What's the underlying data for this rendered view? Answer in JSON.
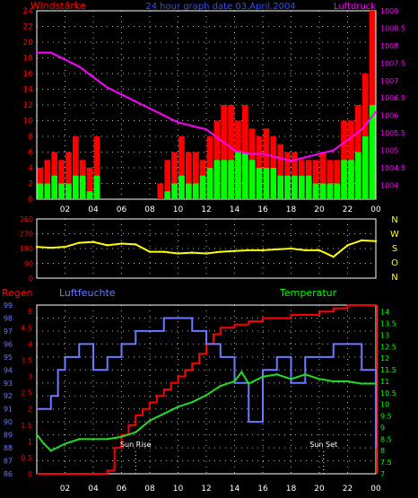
{
  "header": {
    "left_label": "Windstärke",
    "title": "24 hour graph date  03.April.2004",
    "right_label": "Luftdruck"
  },
  "bottom_header": {
    "regen": "Regen",
    "luftfeuchte": "Luftfeuchte",
    "temperatur": "Temperatur"
  },
  "hour_ticks": [
    "02",
    "04",
    "06",
    "08",
    "10",
    "12",
    "14",
    "16",
    "18",
    "20",
    "22",
    "00"
  ],
  "colors": {
    "background": "#000000",
    "wind_gust": "#ff0000",
    "wind_avg": "#00ff00",
    "pressure": "#ff00ff",
    "direction": "#ffff00",
    "rain": "#ff0000",
    "humidity": "#6a7bff",
    "temperature": "#22dd22",
    "grid": "#ffffff",
    "left_axis": "#ff0000",
    "right_axis_pressure": "#ff00ff",
    "right_axis_dir": "#ffff00",
    "humidity_axis": "#6a7bff",
    "temp_axis": "#ff2200"
  },
  "chart_data": [
    {
      "type": "bar",
      "title": "24 hour graph date  03.April.2004",
      "x_label": "",
      "x_ticks": [
        "02",
        "04",
        "06",
        "08",
        "10",
        "12",
        "14",
        "16",
        "18",
        "20",
        "22",
        "00"
      ],
      "y_left": {
        "label": "Windstärke",
        "ticks": [
          "0",
          "2",
          "4",
          "6",
          "8",
          "10",
          "12",
          "14",
          "16",
          "18",
          "20",
          "22",
          "24"
        ],
        "ylim": [
          0,
          24
        ]
      },
      "y_right": {
        "label": "Luftdruck",
        "ticks": [
          "1004",
          "1004.5",
          "1005",
          "1005.5",
          "1006",
          "1006.5",
          "1007",
          "1007.5",
          "1008",
          "1008.5",
          "1009"
        ],
        "ylim": [
          1003.6,
          1009
        ]
      },
      "series": [
        {
          "name": "Windstärke",
          "x_hours": [
            0.5,
            1,
            1.5,
            2,
            2.5,
            3,
            3.5,
            4,
            4.5,
            5,
            5.5,
            6,
            6.5,
            7,
            7.5,
            8,
            8.5,
            9,
            9.5,
            10,
            10.5,
            11,
            11.5,
            12,
            12.5,
            13,
            13.5,
            14,
            14.5,
            15,
            15.5,
            16,
            16.5,
            17,
            17.5,
            18,
            18.5,
            19,
            19.5,
            20,
            20.5,
            21,
            21.5,
            22,
            22.5,
            23,
            23.5,
            24
          ],
          "gust": [
            4,
            5,
            6,
            5,
            6,
            8,
            5,
            4,
            8,
            0,
            0,
            0,
            0,
            0,
            0,
            0,
            0,
            2,
            5,
            6,
            8,
            6,
            6,
            5,
            8,
            10,
            12,
            12,
            10,
            12,
            9,
            8,
            9,
            8,
            7,
            6,
            6,
            5,
            5,
            5,
            6,
            5,
            5,
            10,
            10,
            12,
            16,
            24
          ],
          "avg": [
            2,
            2,
            3,
            2,
            2,
            3,
            3,
            1,
            3,
            0,
            0,
            0,
            0,
            0,
            0,
            0,
            0,
            0,
            1,
            2,
            3,
            2,
            2,
            3,
            4,
            5,
            5,
            5,
            6,
            6,
            5,
            4,
            4,
            4,
            3,
            3,
            3,
            3,
            3,
            2,
            2,
            2,
            2,
            5,
            5,
            6,
            8,
            12
          ]
        },
        {
          "name": "Luftdruck",
          "x_hours": [
            0,
            1,
            2,
            3,
            4,
            5,
            6,
            7,
            8,
            9,
            10,
            11,
            12,
            13,
            14,
            15,
            16,
            17,
            18,
            19,
            20,
            21,
            22,
            23,
            24
          ],
          "values": [
            1007.8,
            1007.8,
            1007.6,
            1007.4,
            1007.1,
            1006.8,
            1006.6,
            1006.4,
            1006.2,
            1006.0,
            1005.8,
            1005.7,
            1005.6,
            1005.3,
            1005.0,
            1004.9,
            1004.9,
            1004.8,
            1004.7,
            1004.8,
            1004.9,
            1005.0,
            1005.3,
            1005.6,
            1006.1
          ]
        }
      ]
    },
    {
      "type": "line",
      "x_ticks": [
        "02",
        "04",
        "06",
        "08",
        "10",
        "12",
        "14",
        "16",
        "18",
        "20",
        "22",
        "00"
      ],
      "y_left": {
        "ticks": [
          "0",
          "90",
          "180",
          "270",
          "360"
        ],
        "ylim": [
          0,
          360
        ]
      },
      "y_right": {
        "ticks": [
          "N",
          "W",
          "S",
          "O",
          "N"
        ]
      },
      "series": [
        {
          "name": "Windrichtung",
          "x_hours": [
            0,
            1,
            2,
            3,
            4,
            5,
            6,
            7,
            8,
            9,
            10,
            11,
            12,
            13,
            14,
            15,
            16,
            17,
            18,
            19,
            20,
            21,
            22,
            23,
            24
          ],
          "values": [
            190,
            185,
            190,
            215,
            220,
            200,
            210,
            205,
            160,
            160,
            150,
            155,
            150,
            160,
            165,
            170,
            170,
            175,
            180,
            170,
            170,
            130,
            200,
            230,
            225
          ]
        }
      ]
    },
    {
      "type": "line",
      "x_ticks": [
        "02",
        "04",
        "06",
        "08",
        "10",
        "12",
        "14",
        "16",
        "18",
        "20",
        "22",
        "00"
      ],
      "annotations": [
        {
          "label": "Sun Rise",
          "x_hour": 7
        },
        {
          "label": "Sun Set",
          "x_hour": 20.3
        }
      ],
      "y_regen": {
        "label": "Regen",
        "ticks": [
          "0",
          "0.5",
          "1",
          "1.5",
          "2",
          "2.5",
          "3",
          "3.5",
          "4",
          "4.5",
          "5"
        ],
        "ylim": [
          0,
          5.2
        ]
      },
      "y_humidity": {
        "label": "Luftfeuchte",
        "ticks": [
          "86",
          "87",
          "88",
          "89",
          "90",
          "91",
          "92",
          "93",
          "94",
          "95",
          "96",
          "97",
          "98",
          "99"
        ],
        "ylim": [
          86,
          99
        ]
      },
      "y_temperature": {
        "label": "Temperatur",
        "ticks": [
          "7",
          "7.5",
          "8",
          "8.5",
          "9",
          "9.5",
          "10",
          "10.5",
          "11",
          "11.5",
          "12",
          "12.5",
          "13",
          "13.5",
          "14"
        ],
        "ylim": [
          7,
          14.3
        ]
      },
      "series": [
        {
          "name": "Regen",
          "x_hours": [
            0,
            1,
            2,
            3,
            4,
            5,
            5.5,
            6,
            6.5,
            7,
            7.5,
            8,
            8.5,
            9,
            9.5,
            10,
            10.5,
            11,
            11.5,
            12,
            12.5,
            13,
            14,
            15,
            16,
            17,
            18,
            19,
            20,
            21,
            22,
            23,
            24
          ],
          "values": [
            0,
            0,
            0,
            0,
            0,
            0.1,
            0.8,
            1.2,
            1.5,
            1.8,
            2.0,
            2.2,
            2.4,
            2.6,
            2.8,
            3.0,
            3.2,
            3.4,
            3.7,
            4.0,
            4.3,
            4.5,
            4.6,
            4.7,
            4.8,
            4.8,
            4.9,
            4.9,
            5.0,
            5.1,
            5.2,
            5.2,
            5.2
          ]
        },
        {
          "name": "Luftfeuchte",
          "x_hours": [
            0,
            1,
            1.5,
            2,
            3,
            4,
            5,
            6,
            7,
            8,
            9,
            10,
            11,
            12,
            13,
            14,
            15,
            16,
            17,
            18,
            19,
            20,
            21,
            22,
            23,
            24
          ],
          "values": [
            91,
            92,
            94,
            95,
            96,
            94,
            95,
            96,
            97,
            97,
            98,
            98,
            97,
            96,
            95,
            93,
            90,
            94,
            95,
            93,
            95,
            95,
            96,
            96,
            94,
            88
          ]
        },
        {
          "name": "Temperatur",
          "x_hours": [
            0,
            0.5,
            1,
            2,
            3,
            4,
            5,
            6,
            7,
            8,
            9,
            10,
            11,
            12,
            13,
            14,
            14.5,
            15,
            16,
            17,
            18,
            19,
            20,
            21,
            22,
            23,
            24
          ],
          "values": [
            8.7,
            8.3,
            8.0,
            8.3,
            8.5,
            8.5,
            8.5,
            8.6,
            8.8,
            9.3,
            9.6,
            9.9,
            10.1,
            10.4,
            10.8,
            11.0,
            11.4,
            10.9,
            11.2,
            11.3,
            11.1,
            11.3,
            11.1,
            11.0,
            11.0,
            10.9,
            10.9
          ]
        }
      ]
    }
  ]
}
